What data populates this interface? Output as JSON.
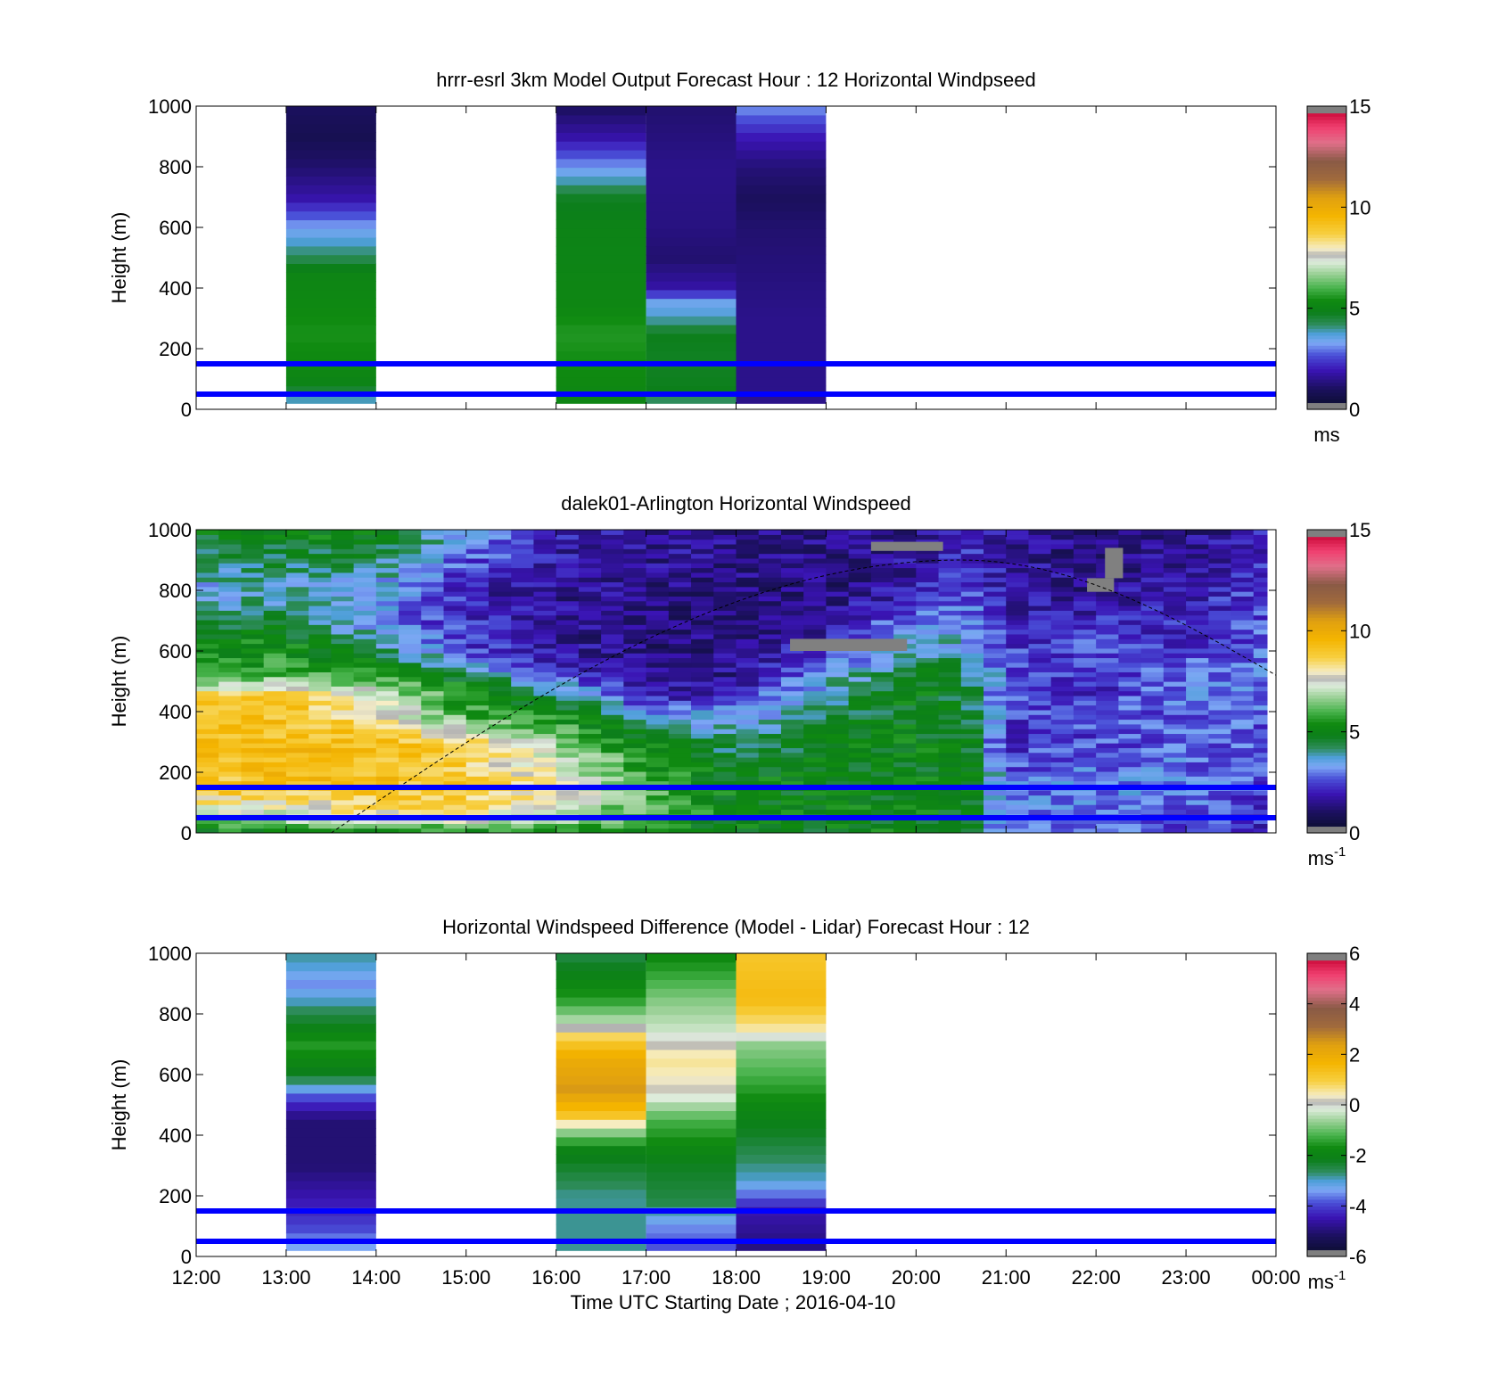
{
  "chart_data": [
    {
      "type": "heatmap",
      "title": "hrrr-esrl 3km Model Output   Forecast Hour : 12 Horizontal Windpseed",
      "ylabel": "Height (m)",
      "ylim": [
        0,
        1000
      ],
      "yticks": [
        "0",
        "200",
        "400",
        "600",
        "800",
        "1000"
      ],
      "xlim": [
        "12:00",
        "00:00"
      ],
      "colorbar": {
        "range": [
          0,
          15
        ],
        "ticks": [
          "0",
          "5",
          "10",
          "15"
        ],
        "unit": "ms",
        "unit_sup": ""
      },
      "reference_heights": [
        50,
        150
      ],
      "hour_columns": [
        {
          "start": 13,
          "end": 14,
          "values": [
            [
              0,
              3
            ],
            [
              80,
              5
            ],
            [
              150,
              5.3
            ],
            [
              250,
              5.5
            ],
            [
              350,
              5.3
            ],
            [
              450,
              5.1
            ],
            [
              500,
              4.3
            ],
            [
              600,
              3.3
            ],
            [
              700,
              1.8
            ],
            [
              800,
              1.2
            ],
            [
              900,
              0.8
            ],
            [
              1000,
              1.0
            ]
          ]
        },
        {
          "start": 16,
          "end": 17,
          "values": [
            [
              0,
              5
            ],
            [
              80,
              5.3
            ],
            [
              150,
              5.4
            ],
            [
              250,
              5.6
            ],
            [
              350,
              5.2
            ],
            [
              450,
              5.1
            ],
            [
              600,
              5.0
            ],
            [
              700,
              4.7
            ],
            [
              800,
              3.2
            ],
            [
              900,
              1.8
            ],
            [
              1000,
              1.0
            ]
          ]
        },
        {
          "start": 17,
          "end": 18,
          "values": [
            [
              0,
              3.4
            ],
            [
              60,
              4.8
            ],
            [
              150,
              4.7
            ],
            [
              250,
              4.8
            ],
            [
              310,
              3.7
            ],
            [
              350,
              3.5
            ],
            [
              400,
              1.8
            ],
            [
              500,
              1.2
            ],
            [
              600,
              1.4
            ],
            [
              800,
              1.5
            ],
            [
              1000,
              1.2
            ]
          ]
        },
        {
          "start": 18,
          "end": 19,
          "values": [
            [
              0,
              1.5
            ],
            [
              150,
              1.5
            ],
            [
              300,
              1.5
            ],
            [
              500,
              1.3
            ],
            [
              600,
              1.2
            ],
            [
              700,
              1.0
            ],
            [
              800,
              1.3
            ],
            [
              900,
              2.0
            ],
            [
              1000,
              3.2
            ]
          ]
        }
      ]
    },
    {
      "type": "heatmap",
      "title": "dalek01-Arlington  Horizontal Windspeed",
      "ylabel": "Height (m)",
      "ylim": [
        0,
        1000
      ],
      "yticks": [
        "0",
        "200",
        "400",
        "600",
        "800",
        "1000"
      ],
      "xlim": [
        "12:00",
        "00:00"
      ],
      "colorbar": {
        "range": [
          0,
          15
        ],
        "ticks": [
          "0",
          "5",
          "10",
          "15"
        ],
        "unit": "ms",
        "unit_sup": "-1"
      },
      "reference_heights": [
        50,
        150
      ],
      "boundary_layer_curve": {
        "start_hour": 13.5,
        "peak_hour": 20.5,
        "peak_height": 900,
        "end_hour": 24,
        "end_height": 520
      },
      "data_end_hour": 23.9,
      "profiles": [
        {
          "hour": 12.0,
          "values": [
            [
              0,
              5
            ],
            [
              50,
              7
            ],
            [
              150,
              9
            ],
            [
              300,
              9.2
            ],
            [
              450,
              8.7
            ],
            [
              500,
              6
            ],
            [
              650,
              5
            ],
            [
              800,
              3.5
            ],
            [
              1000,
              5
            ]
          ]
        },
        {
          "hour": 13.0,
          "values": [
            [
              0,
              5
            ],
            [
              50,
              7
            ],
            [
              150,
              9.2
            ],
            [
              300,
              9.3
            ],
            [
              450,
              9
            ],
            [
              520,
              6
            ],
            [
              650,
              5
            ],
            [
              800,
              3.7
            ],
            [
              1000,
              5.2
            ]
          ]
        },
        {
          "hour": 14.0,
          "values": [
            [
              0,
              5
            ],
            [
              50,
              8
            ],
            [
              150,
              9.2
            ],
            [
              300,
              9.3
            ],
            [
              450,
              7.5
            ],
            [
              550,
              5
            ],
            [
              700,
              3.0
            ],
            [
              850,
              3.8
            ],
            [
              1000,
              5.2
            ]
          ]
        },
        {
          "hour": 15.0,
          "values": [
            [
              0,
              5
            ],
            [
              50,
              8
            ],
            [
              150,
              9
            ],
            [
              300,
              8.5
            ],
            [
              380,
              6
            ],
            [
              500,
              5
            ],
            [
              600,
              2.5
            ],
            [
              800,
              2.0
            ],
            [
              1000,
              3.5
            ]
          ]
        },
        {
          "hour": 16.0,
          "values": [
            [
              0,
              5
            ],
            [
              50,
              7
            ],
            [
              150,
              8
            ],
            [
              250,
              7.2
            ],
            [
              350,
              6
            ],
            [
              450,
              4.5
            ],
            [
              550,
              2.0
            ],
            [
              700,
              1.5
            ],
            [
              1000,
              2.0
            ]
          ]
        },
        {
          "hour": 17.0,
          "values": [
            [
              0,
              5
            ],
            [
              50,
              6
            ],
            [
              150,
              6
            ],
            [
              250,
              5.5
            ],
            [
              350,
              4.5
            ],
            [
              450,
              2.0
            ],
            [
              550,
              1.4
            ],
            [
              700,
              1.3
            ],
            [
              1000,
              1.8
            ]
          ]
        },
        {
          "hour": 18.0,
          "values": [
            [
              0,
              5
            ],
            [
              100,
              5
            ],
            [
              200,
              5
            ],
            [
              300,
              4.0
            ],
            [
              400,
              3.0
            ],
            [
              500,
              1.6
            ],
            [
              700,
              1.3
            ],
            [
              1000,
              1.5
            ]
          ]
        },
        {
          "hour": 19.0,
          "values": [
            [
              0,
              5
            ],
            [
              150,
              5
            ],
            [
              300,
              5
            ],
            [
              450,
              4.0
            ],
            [
              550,
              3.0
            ],
            [
              650,
              1.8
            ],
            [
              800,
              1.3
            ],
            [
              1000,
              1.5
            ]
          ]
        },
        {
          "hour": 20.0,
          "values": [
            [
              0,
              5
            ],
            [
              150,
              5
            ],
            [
              300,
              5
            ],
            [
              500,
              5
            ],
            [
              600,
              4.0
            ],
            [
              700,
              3.0
            ],
            [
              800,
              2.0
            ],
            [
              1000,
              1.5
            ]
          ]
        },
        {
          "hour": 20.6,
          "values": [
            [
              0,
              5
            ],
            [
              150,
              5
            ],
            [
              300,
              4.8
            ],
            [
              500,
              4.5
            ],
            [
              650,
              3.5
            ],
            [
              800,
              2.5
            ],
            [
              1000,
              2.0
            ]
          ]
        },
        {
          "hour": 21.0,
          "values": [
            [
              0,
              2.5
            ],
            [
              150,
              3.0
            ],
            [
              300,
              2.2
            ],
            [
              500,
              2.8
            ],
            [
              650,
              2.2
            ],
            [
              800,
              1.8
            ],
            [
              1000,
              1.8
            ]
          ]
        },
        {
          "hour": 22.0,
          "values": [
            [
              0,
              2.8
            ],
            [
              150,
              3.2
            ],
            [
              300,
              2.6
            ],
            [
              500,
              2.2
            ],
            [
              650,
              2.5
            ],
            [
              800,
              1.5
            ],
            [
              1000,
              1.2
            ]
          ]
        },
        {
          "hour": 23.0,
          "values": [
            [
              0,
              2.5
            ],
            [
              150,
              3.0
            ],
            [
              300,
              2.8
            ],
            [
              500,
              3.0
            ],
            [
              650,
              2.2
            ],
            [
              800,
              2.0
            ],
            [
              1000,
              1.5
            ]
          ]
        },
        {
          "hour": 24.0,
          "values": [
            [
              0,
              2.0
            ],
            [
              150,
              2.5
            ],
            [
              300,
              2.6
            ],
            [
              500,
              3.0
            ],
            [
              650,
              2.8
            ],
            [
              800,
              2.5
            ],
            [
              1000,
              2.0
            ]
          ]
        }
      ],
      "missing_patches": [
        {
          "start_hour": 18.6,
          "end_hour": 19.9,
          "low": 600,
          "high": 640
        },
        {
          "start_hour": 19.5,
          "end_hour": 20.3,
          "low": 930,
          "high": 960
        },
        {
          "start_hour": 21.9,
          "end_hour": 22.2,
          "low": 795,
          "high": 840
        },
        {
          "start_hour": 22.1,
          "end_hour": 22.3,
          "low": 840,
          "high": 940
        }
      ]
    },
    {
      "type": "heatmap",
      "title": "Horizontal Windspeed Difference (Model - Lidar) Forecast Hour : 12",
      "ylabel": "Height (m)",
      "xlabel": "Time UTC  Starting Date ; 2016-04-10",
      "ylim": [
        0,
        1000
      ],
      "yticks": [
        "0",
        "200",
        "400",
        "600",
        "800",
        "1000"
      ],
      "xticks": [
        "12:00",
        "13:00",
        "14:00",
        "15:00",
        "16:00",
        "17:00",
        "18:00",
        "19:00",
        "20:00",
        "21:00",
        "22:00",
        "23:00",
        "00:00"
      ],
      "colorbar": {
        "range": [
          -6,
          6
        ],
        "ticks": [
          "-6",
          "-4",
          "-2",
          "0",
          "2",
          "4",
          "6"
        ],
        "unit": "ms",
        "unit_sup": "-1"
      },
      "reference_heights": [
        50,
        150
      ],
      "hour_columns": [
        {
          "start": 13,
          "end": 14,
          "values": [
            [
              0,
              -3
            ],
            [
              100,
              -4
            ],
            [
              200,
              -4.5
            ],
            [
              300,
              -5
            ],
            [
              450,
              -5
            ],
            [
              520,
              -4
            ],
            [
              560,
              -3
            ],
            [
              620,
              -2
            ],
            [
              700,
              -1.5
            ],
            [
              800,
              -2.5
            ],
            [
              900,
              -3.5
            ],
            [
              960,
              -3
            ],
            [
              1000,
              -2.8
            ]
          ]
        },
        {
          "start": 16,
          "end": 17,
          "values": [
            [
              0,
              -2.8
            ],
            [
              200,
              -2.8
            ],
            [
              350,
              -2
            ],
            [
              420,
              -0.5
            ],
            [
              450,
              1
            ],
            [
              550,
              2.5
            ],
            [
              650,
              2.0
            ],
            [
              720,
              1.0
            ],
            [
              780,
              -0.5
            ],
            [
              850,
              -1.5
            ],
            [
              1000,
              -2.5
            ]
          ]
        },
        {
          "start": 17,
          "end": 18,
          "values": [
            [
              0,
              -4
            ],
            [
              100,
              -3.5
            ],
            [
              180,
              -2.5
            ],
            [
              300,
              -2.2
            ],
            [
              450,
              -1.2
            ],
            [
              550,
              0.2
            ],
            [
              650,
              0.6
            ],
            [
              750,
              -0.3
            ],
            [
              850,
              -0.8
            ],
            [
              950,
              -1.5
            ],
            [
              1000,
              -1.8
            ]
          ]
        },
        {
          "start": 18,
          "end": 19,
          "values": [
            [
              0,
              -5
            ],
            [
              150,
              -4.5
            ],
            [
              250,
              -3
            ],
            [
              350,
              -2.5
            ],
            [
              500,
              -1.8
            ],
            [
              600,
              -1.2
            ],
            [
              700,
              -0.7
            ],
            [
              750,
              0.5
            ],
            [
              850,
              1.5
            ],
            [
              1000,
              1.2
            ]
          ]
        }
      ]
    }
  ]
}
